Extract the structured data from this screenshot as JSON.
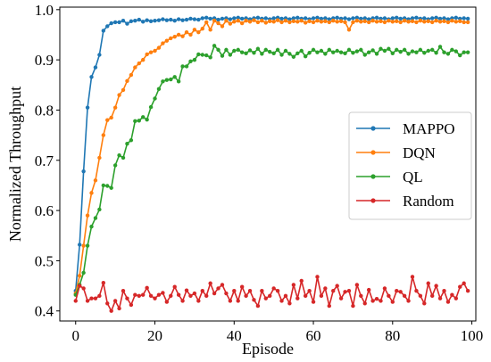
{
  "chart_data": {
    "type": "line",
    "xlabel": "Episode",
    "ylabel": "Normalized Throughput",
    "xlim": [
      -4,
      101
    ],
    "ylim": [
      0.38,
      1.005
    ],
    "xticks": [
      0,
      20,
      40,
      60,
      80,
      100
    ],
    "yticks": [
      0.4,
      0.5,
      0.6,
      0.7,
      0.8,
      0.9,
      1.0
    ],
    "xtick_labels": [
      "0",
      "20",
      "40",
      "60",
      "80",
      "100"
    ],
    "ytick_labels": [
      "0.4",
      "0.5",
      "0.6",
      "0.7",
      "0.8",
      "0.9",
      "1.0"
    ],
    "legend_position": "center-right",
    "grid": false,
    "series": [
      {
        "name": "MAPPO",
        "color": "#1f77b4",
        "values": [
          0.44,
          0.532,
          0.678,
          0.805,
          0.866,
          0.885,
          0.91,
          0.958,
          0.967,
          0.973,
          0.975,
          0.975,
          0.978,
          0.972,
          0.977,
          0.978,
          0.98,
          0.976,
          0.979,
          0.977,
          0.978,
          0.979,
          0.981,
          0.979,
          0.98,
          0.978,
          0.981,
          0.979,
          0.98,
          0.982,
          0.981,
          0.98,
          0.983,
          0.984,
          0.982,
          0.983,
          0.98,
          0.982,
          0.983,
          0.981,
          0.983,
          0.984,
          0.982,
          0.983,
          0.981,
          0.983,
          0.984,
          0.982,
          0.983,
          0.981,
          0.983,
          0.984,
          0.982,
          0.983,
          0.981,
          0.983,
          0.984,
          0.982,
          0.983,
          0.981,
          0.983,
          0.984,
          0.982,
          0.983,
          0.981,
          0.983,
          0.984,
          0.982,
          0.983,
          0.981,
          0.983,
          0.984,
          0.982,
          0.983,
          0.981,
          0.983,
          0.984,
          0.982,
          0.983,
          0.981,
          0.983,
          0.984,
          0.982,
          0.983,
          0.981,
          0.983,
          0.984,
          0.982,
          0.983,
          0.981,
          0.983,
          0.984,
          0.982,
          0.983,
          0.981,
          0.983,
          0.984,
          0.982,
          0.983,
          0.982
        ]
      },
      {
        "name": "DQN",
        "color": "#ff7f0e",
        "values": [
          0.435,
          0.47,
          0.53,
          0.59,
          0.635,
          0.66,
          0.705,
          0.75,
          0.78,
          0.785,
          0.805,
          0.83,
          0.84,
          0.858,
          0.87,
          0.885,
          0.893,
          0.9,
          0.911,
          0.915,
          0.918,
          0.924,
          0.933,
          0.938,
          0.943,
          0.946,
          0.95,
          0.947,
          0.955,
          0.95,
          0.96,
          0.955,
          0.962,
          0.975,
          0.96,
          0.978,
          0.973,
          0.967,
          0.978,
          0.972,
          0.976,
          0.978,
          0.973,
          0.978,
          0.976,
          0.979,
          0.975,
          0.978,
          0.974,
          0.977,
          0.976,
          0.979,
          0.975,
          0.978,
          0.975,
          0.977,
          0.976,
          0.978,
          0.974,
          0.977,
          0.975,
          0.978,
          0.976,
          0.977,
          0.975,
          0.978,
          0.976,
          0.977,
          0.975,
          0.96,
          0.975,
          0.978,
          0.976,
          0.977,
          0.975,
          0.978,
          0.976,
          0.977,
          0.975,
          0.978,
          0.976,
          0.977,
          0.975,
          0.978,
          0.976,
          0.977,
          0.975,
          0.978,
          0.976,
          0.977,
          0.975,
          0.978,
          0.976,
          0.977,
          0.975,
          0.978,
          0.976,
          0.977,
          0.975,
          0.975
        ]
      },
      {
        "name": "QL",
        "color": "#2ca02c",
        "values": [
          0.432,
          0.452,
          0.476,
          0.53,
          0.568,
          0.585,
          0.602,
          0.65,
          0.649,
          0.645,
          0.69,
          0.71,
          0.705,
          0.733,
          0.74,
          0.778,
          0.779,
          0.786,
          0.781,
          0.806,
          0.823,
          0.842,
          0.857,
          0.86,
          0.861,
          0.866,
          0.857,
          0.887,
          0.887,
          0.897,
          0.9,
          0.911,
          0.91,
          0.909,
          0.905,
          0.928,
          0.92,
          0.908,
          0.92,
          0.91,
          0.918,
          0.92,
          0.915,
          0.913,
          0.919,
          0.914,
          0.922,
          0.912,
          0.92,
          0.916,
          0.913,
          0.92,
          0.91,
          0.918,
          0.912,
          0.906,
          0.913,
          0.918,
          0.907,
          0.914,
          0.92,
          0.915,
          0.918,
          0.912,
          0.92,
          0.915,
          0.918,
          0.915,
          0.913,
          0.92,
          0.914,
          0.917,
          0.92,
          0.91,
          0.915,
          0.919,
          0.912,
          0.922,
          0.918,
          0.922,
          0.913,
          0.92,
          0.916,
          0.92,
          0.912,
          0.917,
          0.915,
          0.92,
          0.914,
          0.918,
          0.92,
          0.914,
          0.926,
          0.915,
          0.912,
          0.92,
          0.917,
          0.909,
          0.915,
          0.915
        ]
      },
      {
        "name": "Random",
        "color": "#d62728",
        "values": [
          0.42,
          0.45,
          0.445,
          0.42,
          0.425,
          0.425,
          0.43,
          0.456,
          0.415,
          0.4,
          0.42,
          0.405,
          0.44,
          0.425,
          0.412,
          0.432,
          0.43,
          0.432,
          0.446,
          0.43,
          0.425,
          0.432,
          0.436,
          0.418,
          0.43,
          0.448,
          0.432,
          0.42,
          0.441,
          0.43,
          0.435,
          0.42,
          0.44,
          0.43,
          0.455,
          0.435,
          0.445,
          0.452,
          0.435,
          0.42,
          0.44,
          0.42,
          0.448,
          0.43,
          0.44,
          0.422,
          0.41,
          0.44,
          0.425,
          0.43,
          0.445,
          0.44,
          0.42,
          0.43,
          0.415,
          0.452,
          0.425,
          0.46,
          0.43,
          0.44,
          0.418,
          0.468,
          0.43,
          0.445,
          0.41,
          0.44,
          0.45,
          0.425,
          0.438,
          0.44,
          0.41,
          0.452,
          0.43,
          0.415,
          0.442,
          0.42,
          0.424,
          0.42,
          0.445,
          0.43,
          0.418,
          0.44,
          0.438,
          0.43,
          0.42,
          0.468,
          0.44,
          0.43,
          0.415,
          0.455,
          0.43,
          0.45,
          0.425,
          0.44,
          0.418,
          0.432,
          0.425,
          0.448,
          0.455,
          0.44
        ]
      }
    ]
  }
}
